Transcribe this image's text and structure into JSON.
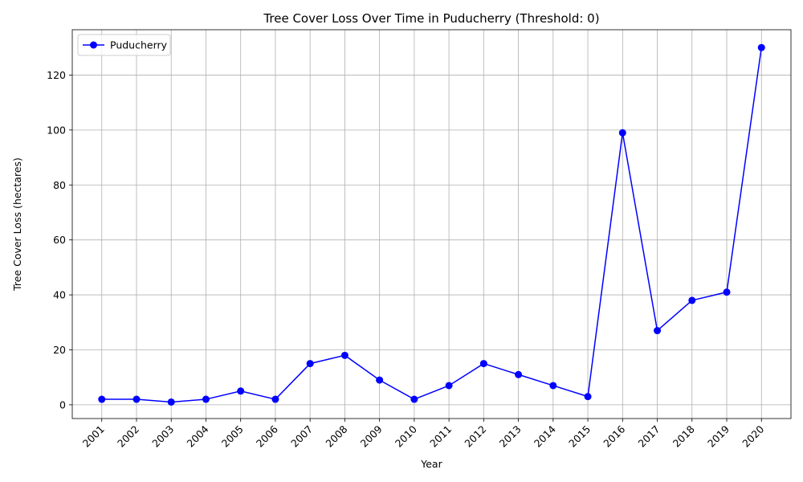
{
  "chart_data": {
    "type": "line",
    "title": "Tree Cover Loss Over Time in Puducherry (Threshold: 0)",
    "xlabel": "Year",
    "ylabel": "Tree Cover Loss (hectares)",
    "x": [
      "2001",
      "2002",
      "2003",
      "2004",
      "2005",
      "2006",
      "2007",
      "2008",
      "2009",
      "2010",
      "2011",
      "2012",
      "2013",
      "2014",
      "2015",
      "2016",
      "2017",
      "2018",
      "2019",
      "2020"
    ],
    "series": [
      {
        "name": "Puducherry",
        "color": "#0000ff",
        "marker": "circle",
        "values": [
          2,
          2,
          1,
          2,
          5,
          2,
          15,
          18,
          9,
          2,
          7,
          15,
          11,
          7,
          3,
          99,
          27,
          38,
          41,
          130
        ]
      }
    ],
    "ylim": [
      -5,
      136.5
    ],
    "yticks": [
      0,
      20,
      40,
      60,
      80,
      100,
      120
    ],
    "grid": true,
    "legend_position": "top-left",
    "xtick_rotation": 45
  }
}
